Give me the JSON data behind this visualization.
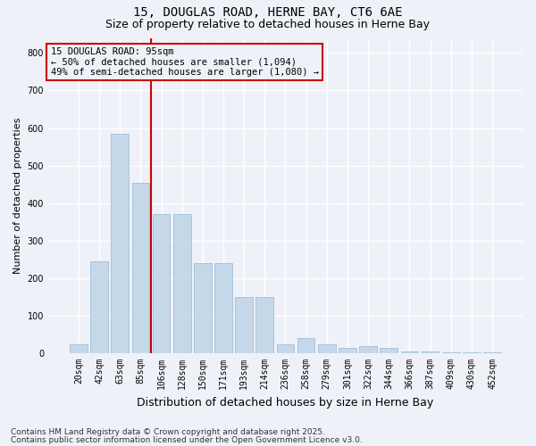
{
  "title1": "15, DOUGLAS ROAD, HERNE BAY, CT6 6AE",
  "title2": "Size of property relative to detached houses in Herne Bay",
  "xlabel": "Distribution of detached houses by size in Herne Bay",
  "ylabel": "Number of detached properties",
  "categories": [
    "20sqm",
    "42sqm",
    "63sqm",
    "85sqm",
    "106sqm",
    "128sqm",
    "150sqm",
    "171sqm",
    "193sqm",
    "214sqm",
    "236sqm",
    "258sqm",
    "279sqm",
    "301sqm",
    "322sqm",
    "344sqm",
    "366sqm",
    "387sqm",
    "409sqm",
    "430sqm",
    "452sqm"
  ],
  "values": [
    25,
    245,
    585,
    455,
    370,
    370,
    240,
    240,
    150,
    150,
    25,
    40,
    25,
    15,
    20,
    15,
    5,
    5,
    2,
    2,
    2
  ],
  "bar_color": "#c5d8ea",
  "bar_edgecolor": "#a8c4dc",
  "vline_color": "#cc0000",
  "vline_pos": 3.5,
  "annotation_box_text": "15 DOUGLAS ROAD: 95sqm\n← 50% of detached houses are smaller (1,094)\n49% of semi-detached houses are larger (1,080) →",
  "box_edgecolor": "#cc0000",
  "footnote1": "Contains HM Land Registry data © Crown copyright and database right 2025.",
  "footnote2": "Contains public sector information licensed under the Open Government Licence v3.0.",
  "ylim": [
    0,
    840
  ],
  "yticks": [
    0,
    100,
    200,
    300,
    400,
    500,
    600,
    700,
    800
  ],
  "background_color": "#eef2f8",
  "grid_color": "#ffffff",
  "title_fontsize": 10,
  "subtitle_fontsize": 9,
  "ylabel_fontsize": 8,
  "xlabel_fontsize": 9,
  "tick_fontsize": 7,
  "annot_fontsize": 7.5,
  "footnote_fontsize": 6.5
}
